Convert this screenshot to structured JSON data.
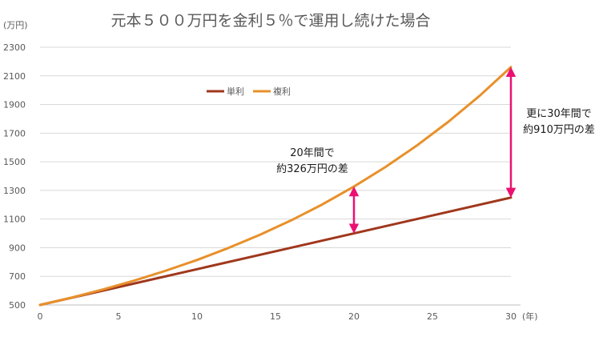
{
  "chart_data": {
    "type": "line",
    "title": "元本５００万円を金利５％で運用し続けた場合",
    "y_unit": "(万円)",
    "x_unit": "(年)",
    "xlim": [
      0,
      30
    ],
    "ylim": [
      500,
      2300
    ],
    "x_ticks": [
      0,
      5,
      10,
      15,
      20,
      25,
      30
    ],
    "y_ticks": [
      500,
      700,
      900,
      1100,
      1300,
      1500,
      1700,
      1900,
      2100,
      2300
    ],
    "grid": true,
    "legend_position": "top-center",
    "series": [
      {
        "name": "単利",
        "color": "#a0371c",
        "x": [
          0,
          5,
          10,
          15,
          20,
          25,
          30
        ],
        "y": [
          500,
          625,
          750,
          875,
          1000,
          1125,
          1250
        ]
      },
      {
        "name": "複利",
        "color": "#e8902a",
        "x": [
          0,
          2,
          4,
          6,
          8,
          10,
          12,
          14,
          16,
          18,
          20,
          22,
          24,
          26,
          28,
          30
        ],
        "y": [
          500,
          551,
          608,
          670,
          739,
          814,
          898,
          990,
          1091,
          1203,
          1327,
          1463,
          1613,
          1778,
          1960,
          2161
        ]
      }
    ],
    "annotations": [
      {
        "x": 20,
        "y_from": 1000,
        "y_to": 1327,
        "color": "#ec0f71",
        "lines": [
          "20年間で",
          "約326万円の差"
        ]
      },
      {
        "x": 30,
        "y_from": 1250,
        "y_to": 2161,
        "color": "#ec0f71",
        "lines": [
          "更に30年間で",
          "約910万円の差"
        ]
      }
    ]
  }
}
